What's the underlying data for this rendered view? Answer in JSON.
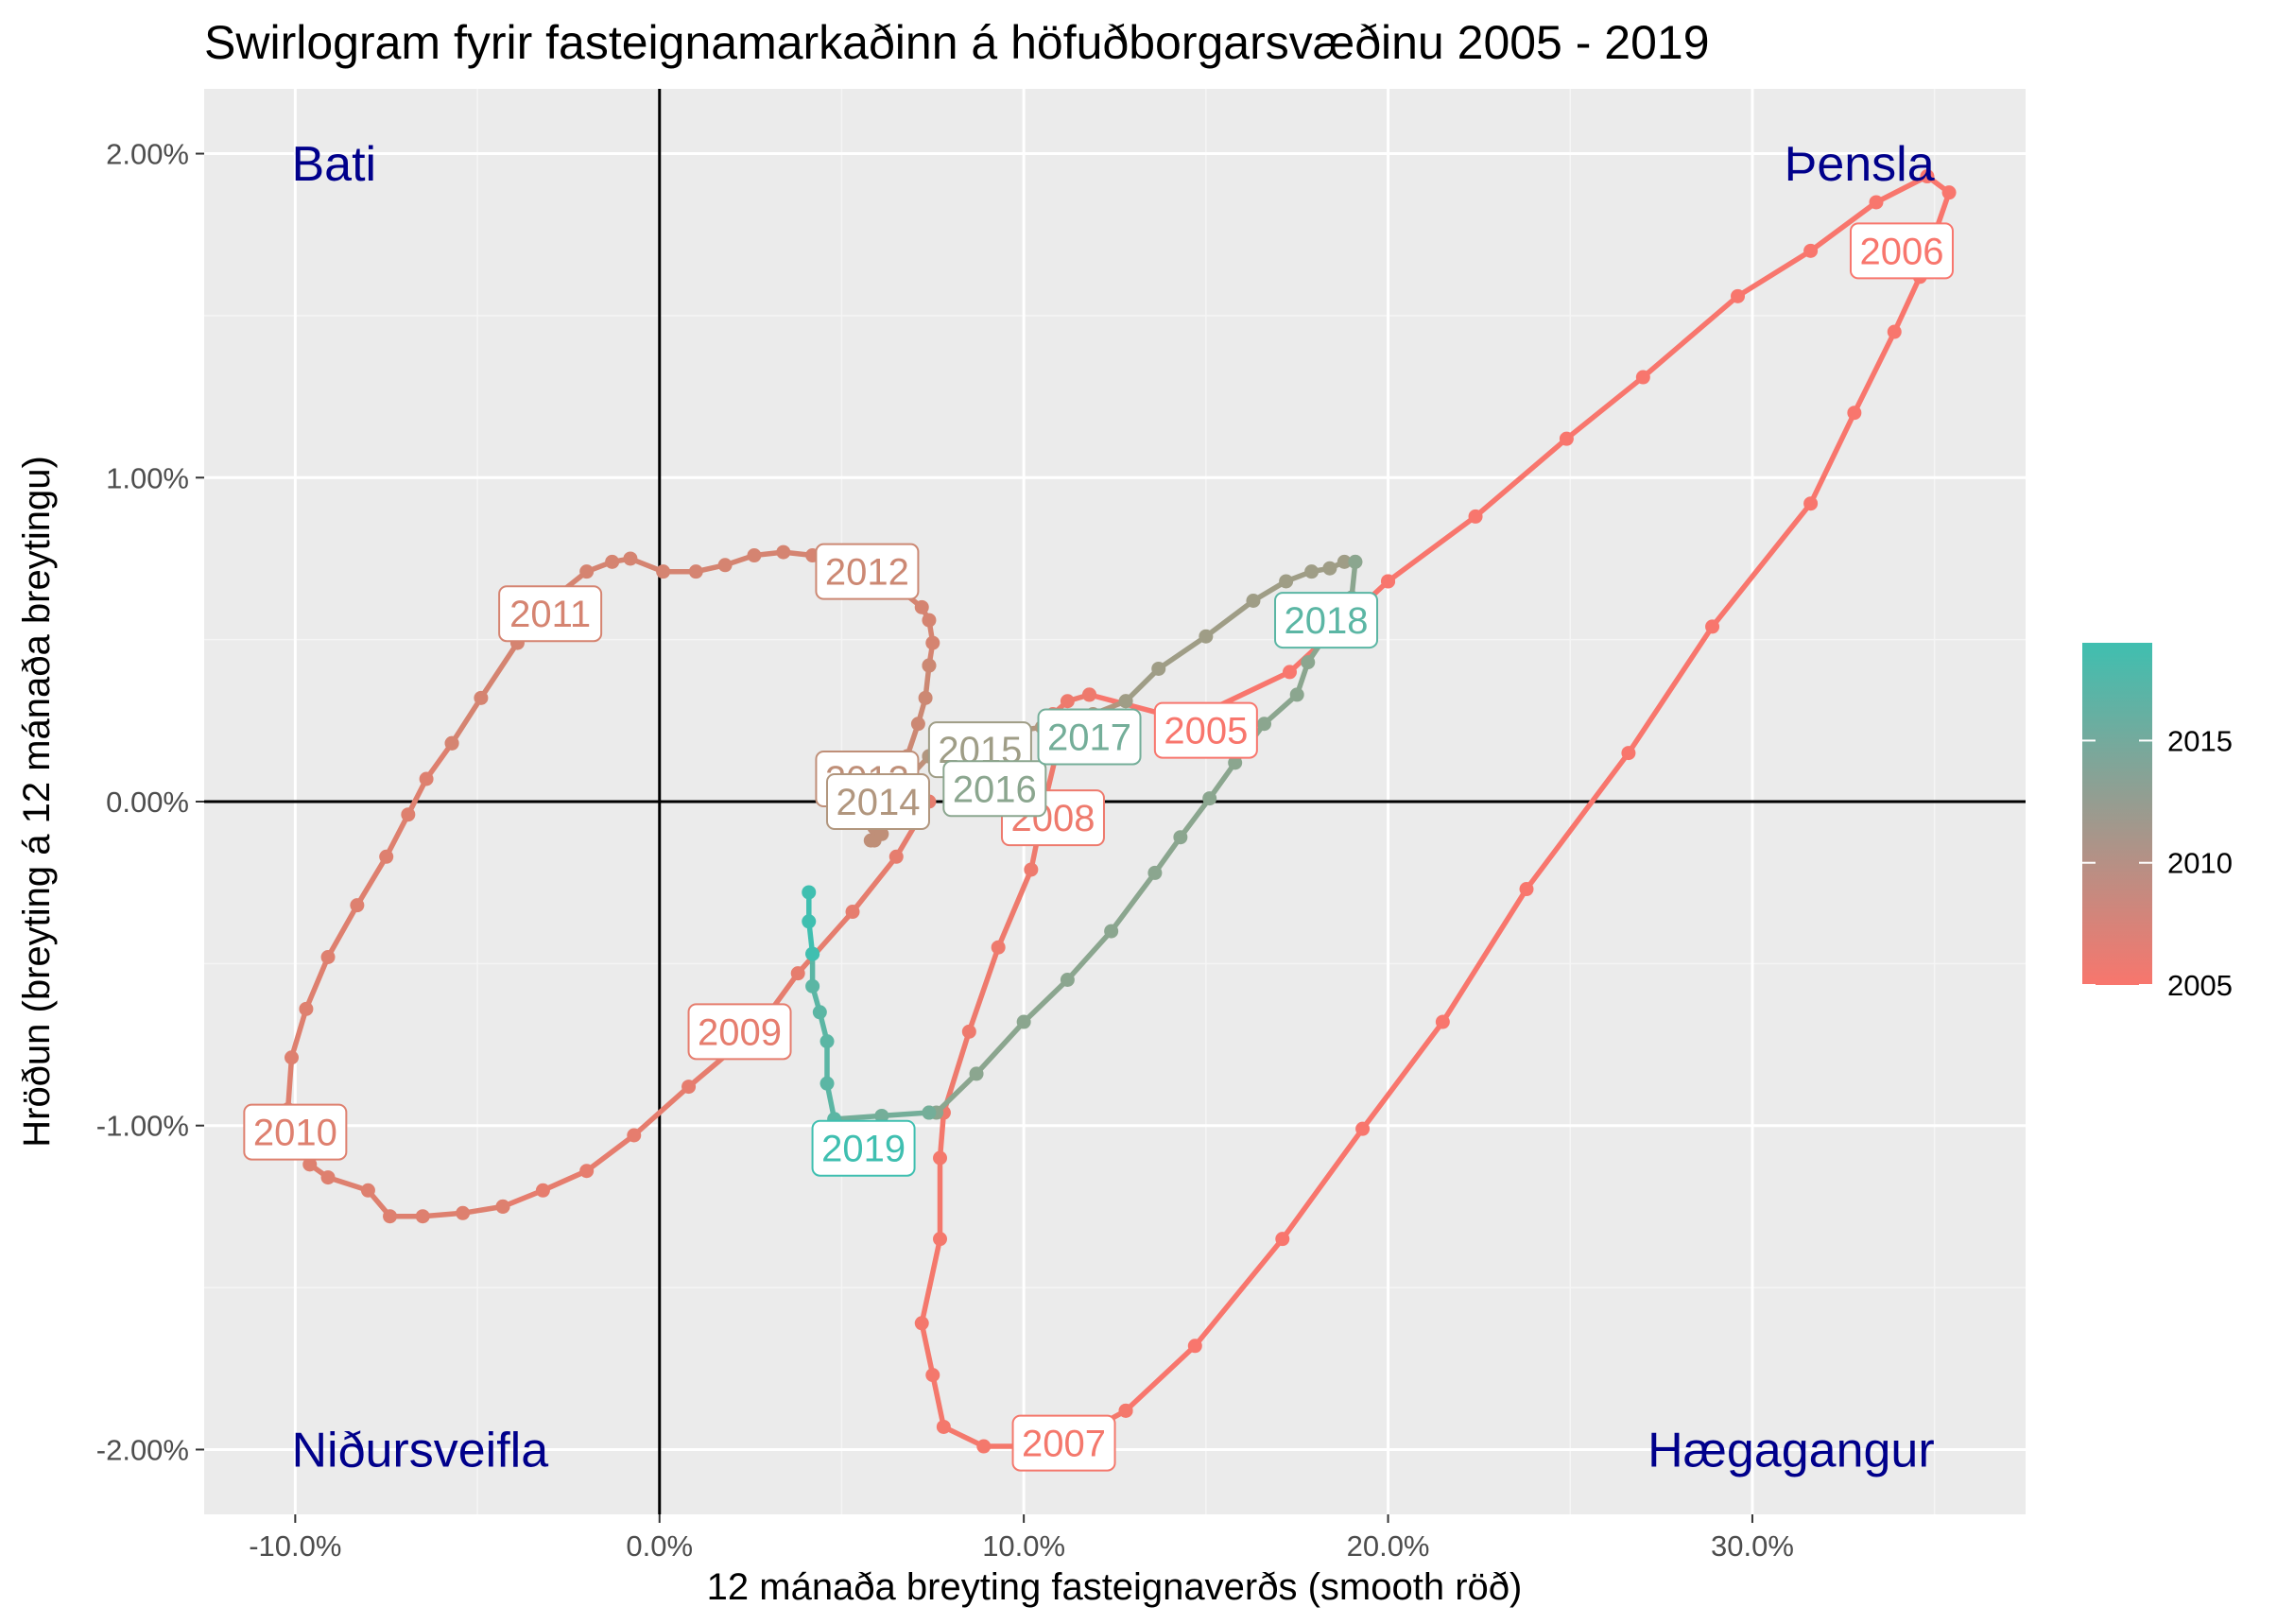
{
  "chart_data": {
    "type": "line",
    "title": "Swirlogram fyrir fasteignamarkaðinn á höfuðborgarsvæðinu 2005 - 2019",
    "xlabel": "12 mánaða breyting fasteignaverðs (smooth röð)",
    "ylabel": "Hröðun (breyting á 12 mánaða breytingu)",
    "xlim": [
      -12.5,
      37.5
    ],
    "ylim": [
      -2.2,
      2.2
    ],
    "x_ticks": [
      -10,
      0,
      10,
      20,
      30
    ],
    "x_tick_labels": [
      "-10.0%",
      "0.0%",
      "10.0%",
      "20.0%",
      "30.0%"
    ],
    "y_ticks": [
      -2,
      -1,
      0,
      1,
      2
    ],
    "y_tick_labels": [
      "-2.00%",
      "-1.00%",
      "0.00%",
      "1.00%",
      "2.00%"
    ],
    "grid": true,
    "reference_lines": {
      "x": 0,
      "y": 0
    },
    "quadrant_labels": [
      {
        "text": "Bati",
        "x": -10.1,
        "y": 1.97,
        "anchor": "start"
      },
      {
        "text": "Þensla",
        "x": 35.0,
        "y": 1.97,
        "anchor": "end"
      },
      {
        "text": "Niðursveifla",
        "x": -10.1,
        "y": -2.0,
        "anchor": "start"
      },
      {
        "text": "Hægagangur",
        "x": 35.0,
        "y": -2.0,
        "anchor": "end"
      }
    ],
    "legend": {
      "position": "right",
      "title": "",
      "labels": [
        "2015",
        "2010",
        "2005"
      ],
      "values": [
        2015,
        2010,
        2005
      ],
      "range": [
        2005,
        2019
      ]
    },
    "colors": {
      "start": "#f8766d",
      "end": "#3fbfb0",
      "year_range": [
        2005,
        2019
      ]
    },
    "series": [
      {
        "year": 2005,
        "color": "#f8766d",
        "points": [
          [
            11.8,
            0.33
          ],
          [
            14.5,
            0.25
          ],
          [
            17.3,
            0.4
          ],
          [
            20.0,
            0.68
          ]
        ]
      },
      {
        "year": 2006,
        "color": "#f8766d",
        "points": [
          [
            20.0,
            0.68
          ],
          [
            22.4,
            0.88
          ],
          [
            24.9,
            1.12
          ],
          [
            27.0,
            1.31
          ],
          [
            29.6,
            1.56
          ],
          [
            31.6,
            1.7
          ],
          [
            33.4,
            1.85
          ],
          [
            34.8,
            1.93
          ],
          [
            35.4,
            1.88
          ],
          [
            34.6,
            1.62
          ],
          [
            33.9,
            1.45
          ],
          [
            32.8,
            1.2
          ],
          [
            31.6,
            0.92
          ],
          [
            28.9,
            0.54
          ],
          [
            26.6,
            0.15
          ],
          [
            23.8,
            -0.27
          ],
          [
            21.5,
            -0.68
          ],
          [
            19.3,
            -1.01
          ],
          [
            17.1,
            -1.35
          ],
          [
            14.7,
            -1.68
          ],
          [
            12.8,
            -1.88
          ]
        ]
      },
      {
        "year": 2007,
        "color": "#f4786c",
        "points": [
          [
            12.8,
            -1.88
          ],
          [
            11.5,
            -1.96
          ],
          [
            10.0,
            -1.99
          ],
          [
            8.9,
            -1.99
          ],
          [
            7.8,
            -1.93
          ],
          [
            7.5,
            -1.77
          ],
          [
            7.2,
            -1.61
          ],
          [
            7.7,
            -1.35
          ],
          [
            7.7,
            -1.1
          ],
          [
            7.8,
            -0.96
          ]
        ]
      },
      {
        "year": 2008,
        "color": "#ee7a6d",
        "points": [
          [
            7.8,
            -0.96
          ],
          [
            8.5,
            -0.71
          ],
          [
            9.3,
            -0.45
          ],
          [
            10.2,
            -0.21
          ],
          [
            10.6,
            0.01
          ],
          [
            10.9,
            0.15
          ],
          [
            10.8,
            0.27
          ],
          [
            11.2,
            0.31
          ],
          [
            11.8,
            0.33
          ]
        ]
      },
      {
        "year": 2009,
        "color": "#e67d6e",
        "points": [
          [
            7.4,
            0.0
          ],
          [
            6.5,
            -0.17
          ],
          [
            5.3,
            -0.34
          ],
          [
            3.8,
            -0.53
          ],
          [
            2.7,
            -0.7
          ],
          [
            0.8,
            -0.88
          ],
          [
            -0.7,
            -1.03
          ],
          [
            -2.0,
            -1.14
          ],
          [
            -3.2,
            -1.2
          ],
          [
            -4.3,
            -1.25
          ]
        ]
      },
      {
        "year": 2010,
        "color": "#de806f",
        "points": [
          [
            -4.3,
            -1.25
          ],
          [
            -5.4,
            -1.27
          ],
          [
            -6.5,
            -1.28
          ],
          [
            -7.4,
            -1.28
          ],
          [
            -8.0,
            -1.2
          ],
          [
            -9.1,
            -1.16
          ],
          [
            -9.6,
            -1.12
          ],
          [
            -10.2,
            -0.95
          ],
          [
            -10.1,
            -0.79
          ],
          [
            -9.7,
            -0.64
          ],
          [
            -9.1,
            -0.48
          ],
          [
            -8.3,
            -0.32
          ],
          [
            -7.5,
            -0.17
          ],
          [
            -6.9,
            -0.04
          ],
          [
            -6.4,
            0.07
          ],
          [
            -5.7,
            0.18
          ]
        ]
      },
      {
        "year": 2011,
        "color": "#d58471",
        "points": [
          [
            -5.7,
            0.18
          ],
          [
            -4.9,
            0.32
          ],
          [
            -3.9,
            0.49
          ],
          [
            -3.0,
            0.62
          ],
          [
            -2.0,
            0.71
          ],
          [
            -1.3,
            0.74
          ],
          [
            -0.8,
            0.75
          ],
          [
            0.1,
            0.71
          ],
          [
            1.0,
            0.71
          ],
          [
            1.8,
            0.73
          ],
          [
            2.6,
            0.76
          ],
          [
            3.4,
            0.77
          ],
          [
            4.2,
            0.76
          ],
          [
            5.1,
            0.74
          ],
          [
            6.2,
            0.69
          ],
          [
            7.2,
            0.6
          ],
          [
            7.4,
            0.56
          ],
          [
            7.5,
            0.49
          ],
          [
            7.4,
            0.42
          ]
        ]
      },
      {
        "year": 2012,
        "color": "#cc8873",
        "points": [
          [
            7.4,
            0.42
          ],
          [
            7.3,
            0.32
          ],
          [
            7.1,
            0.24
          ],
          [
            6.8,
            0.14
          ],
          [
            6.4,
            0.06
          ],
          [
            6.1,
            -0.02
          ],
          [
            5.9,
            -0.08
          ]
        ]
      },
      {
        "year": 2013,
        "color": "#bf8f78",
        "points": [
          [
            5.9,
            -0.08
          ],
          [
            5.8,
            -0.12
          ],
          [
            5.9,
            -0.12
          ],
          [
            6.1,
            -0.1
          ],
          [
            6.3,
            -0.05
          ],
          [
            6.6,
            0.02
          ],
          [
            6.9,
            0.08
          ],
          [
            7.4,
            0.14
          ]
        ]
      },
      {
        "year": 2014,
        "color": "#b1967e",
        "points": [
          [
            7.4,
            0.14
          ],
          [
            8.8,
            0.2
          ],
          [
            10.5,
            0.23
          ],
          [
            11.9,
            0.27
          ],
          [
            12.8,
            0.31
          ]
        ]
      },
      {
        "year": 2015,
        "color": "#9f9d86",
        "points": [
          [
            12.8,
            0.31
          ],
          [
            13.7,
            0.41
          ],
          [
            15.0,
            0.51
          ],
          [
            16.3,
            0.62
          ],
          [
            17.2,
            0.68
          ],
          [
            17.9,
            0.71
          ],
          [
            18.4,
            0.72
          ],
          [
            18.8,
            0.74
          ],
          [
            19.1,
            0.74
          ]
        ]
      },
      {
        "year": 2016,
        "color": "#8ba68f",
        "points": [
          [
            19.1,
            0.74
          ],
          [
            19.0,
            0.63
          ],
          [
            18.4,
            0.53
          ],
          [
            17.8,
            0.43
          ],
          [
            17.5,
            0.33
          ],
          [
            16.6,
            0.24
          ],
          [
            15.8,
            0.12
          ],
          [
            15.1,
            0.01
          ],
          [
            14.3,
            -0.11
          ],
          [
            13.6,
            -0.22
          ],
          [
            12.4,
            -0.4
          ],
          [
            11.2,
            -0.55
          ],
          [
            10.0,
            -0.68
          ],
          [
            8.7,
            -0.84
          ],
          [
            7.6,
            -0.96
          ],
          [
            7.4,
            -0.96
          ]
        ]
      },
      {
        "year": 2017,
        "color": "#74ae99",
        "points": [
          [
            7.4,
            -0.96
          ],
          [
            6.1,
            -0.97
          ],
          [
            4.8,
            -0.98
          ]
        ]
      },
      {
        "year": 2018,
        "color": "#5bb6a4",
        "points": [
          [
            4.8,
            -0.98
          ],
          [
            4.6,
            -0.87
          ],
          [
            4.6,
            -0.74
          ],
          [
            4.4,
            -0.65
          ],
          [
            4.2,
            -0.57
          ],
          [
            4.2,
            -0.47
          ]
        ]
      },
      {
        "year": 2019,
        "color": "#3fbfb0",
        "points": [
          [
            4.2,
            -0.47
          ],
          [
            4.1,
            -0.37
          ],
          [
            4.1,
            -0.28
          ]
        ]
      }
    ],
    "year_labels": [
      {
        "year": 2005,
        "text": "2005",
        "x": 15.0,
        "y": 0.22,
        "color": "#f8766d"
      },
      {
        "year": 2006,
        "text": "2006",
        "x": 34.1,
        "y": 1.7,
        "color": "#f8766d"
      },
      {
        "year": 2007,
        "text": "2007",
        "x": 11.1,
        "y": -1.98,
        "color": "#f4786c"
      },
      {
        "year": 2008,
        "text": "2008",
        "x": 10.8,
        "y": -0.05,
        "color": "#ee7a6d"
      },
      {
        "year": 2009,
        "text": "2009",
        "x": 2.2,
        "y": -0.71,
        "color": "#e67d6e"
      },
      {
        "year": 2010,
        "text": "2010",
        "x": -10.0,
        "y": -1.02,
        "color": "#de806f"
      },
      {
        "year": 2011,
        "text": "2011",
        "x": -3.0,
        "y": 0.58,
        "color": "#d58471"
      },
      {
        "year": 2012,
        "text": "2012",
        "x": 5.7,
        "y": 0.71,
        "color": "#cc8873"
      },
      {
        "year": 2013,
        "text": "2013",
        "x": 5.7,
        "y": 0.07,
        "color": "#bf8f78"
      },
      {
        "year": 2014,
        "text": "2014",
        "x": 6.0,
        "y": 0.0,
        "color": "#b1967e"
      },
      {
        "year": 2015,
        "text": "2015",
        "x": 8.8,
        "y": 0.16,
        "color": "#9f9d86"
      },
      {
        "year": 2016,
        "text": "2016",
        "x": 9.2,
        "y": 0.04,
        "color": "#8ba68f"
      },
      {
        "year": 2017,
        "text": "2017",
        "x": 11.8,
        "y": 0.2,
        "color": "#74ae99"
      },
      {
        "year": 2018,
        "text": "2018",
        "x": 18.3,
        "y": 0.56,
        "color": "#5bb6a4"
      },
      {
        "year": 2019,
        "text": "2019",
        "x": 5.6,
        "y": -1.07,
        "color": "#3fbfb0"
      }
    ]
  }
}
